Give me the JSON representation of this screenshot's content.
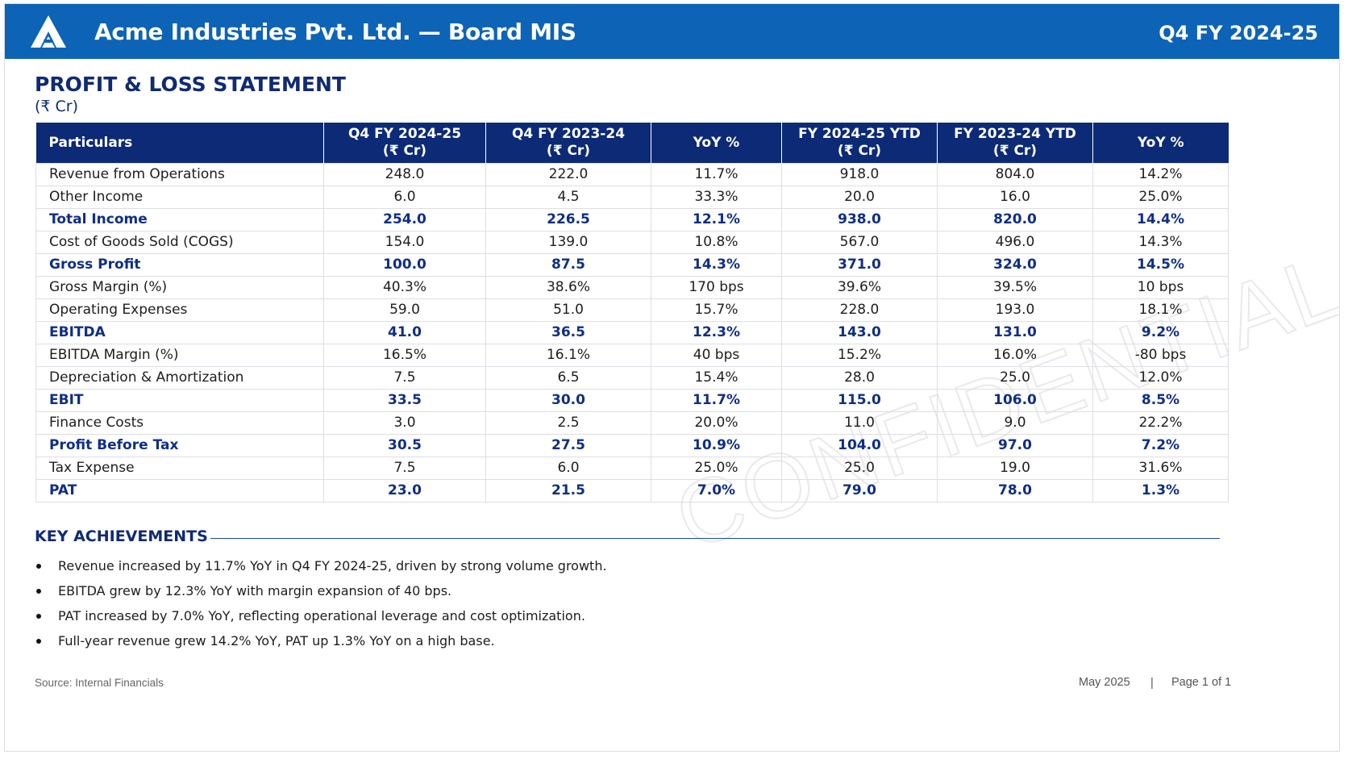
{
  "header": {
    "title": "Acme Industries Pvt. Ltd. — Board MIS",
    "period": "Q4 FY 2024-25",
    "logo_icon": "acme-triangle-logo",
    "bg_color": "#0d63b5"
  },
  "statement": {
    "title": "PROFIT & LOSS STATEMENT",
    "unit": "(₹ Cr)",
    "columns": [
      {
        "l1": "Particulars",
        "l2": ""
      },
      {
        "l1": "Q4 FY 2024-25",
        "l2": "(₹ Cr)"
      },
      {
        "l1": "Q4 FY 2023-24",
        "l2": "(₹ Cr)"
      },
      {
        "l1": "YoY %",
        "l2": ""
      },
      {
        "l1": "FY 2024-25 YTD",
        "l2": "(₹ Cr)"
      },
      {
        "l1": "FY 2023-24 YTD",
        "l2": "(₹ Cr)"
      },
      {
        "l1": "YoY %",
        "l2": ""
      }
    ],
    "rows": [
      {
        "label": "Revenue from Operations",
        "q4_25": "248.0",
        "q4_24": "222.0",
        "yoy_q": "11.7%",
        "fy25": "918.0",
        "fy24": "804.0",
        "yoy_fy": "14.2%",
        "bold": false
      },
      {
        "label": "Other Income",
        "q4_25": "6.0",
        "q4_24": "4.5",
        "yoy_q": "33.3%",
        "fy25": "20.0",
        "fy24": "16.0",
        "yoy_fy": "25.0%",
        "bold": false
      },
      {
        "label": "Total Income",
        "q4_25": "254.0",
        "q4_24": "226.5",
        "yoy_q": "12.1%",
        "fy25": "938.0",
        "fy24": "820.0",
        "yoy_fy": "14.4%",
        "bold": true
      },
      {
        "label": "Cost of Goods Sold (COGS)",
        "q4_25": "154.0",
        "q4_24": "139.0",
        "yoy_q": "10.8%",
        "fy25": "567.0",
        "fy24": "496.0",
        "yoy_fy": "14.3%",
        "bold": false
      },
      {
        "label": "Gross Profit",
        "q4_25": "100.0",
        "q4_24": "87.5",
        "yoy_q": "14.3%",
        "fy25": "371.0",
        "fy24": "324.0",
        "yoy_fy": "14.5%",
        "bold": true
      },
      {
        "label": "Gross Margin (%)",
        "q4_25": "40.3%",
        "q4_24": "38.6%",
        "yoy_q": "170 bps",
        "fy25": "39.6%",
        "fy24": "39.5%",
        "yoy_fy": "10 bps",
        "bold": false
      },
      {
        "label": "Operating Expenses",
        "q4_25": "59.0",
        "q4_24": "51.0",
        "yoy_q": "15.7%",
        "fy25": "228.0",
        "fy24": "193.0",
        "yoy_fy": "18.1%",
        "bold": false
      },
      {
        "label": "EBITDA",
        "q4_25": "41.0",
        "q4_24": "36.5",
        "yoy_q": "12.3%",
        "fy25": "143.0",
        "fy24": "131.0",
        "yoy_fy": "9.2%",
        "bold": true
      },
      {
        "label": "EBITDA Margin (%)",
        "q4_25": "16.5%",
        "q4_24": "16.1%",
        "yoy_q": "40 bps",
        "fy25": "15.2%",
        "fy24": "16.0%",
        "yoy_fy": "-80 bps",
        "bold": false
      },
      {
        "label": "Depreciation & Amortization",
        "q4_25": "7.5",
        "q4_24": "6.5",
        "yoy_q": "15.4%",
        "fy25": "28.0",
        "fy24": "25.0",
        "yoy_fy": "12.0%",
        "bold": false
      },
      {
        "label": "EBIT",
        "q4_25": "33.5",
        "q4_24": "30.0",
        "yoy_q": "11.7%",
        "fy25": "115.0",
        "fy24": "106.0",
        "yoy_fy": "8.5%",
        "bold": true
      },
      {
        "label": "Finance Costs",
        "q4_25": "3.0",
        "q4_24": "2.5",
        "yoy_q": "20.0%",
        "fy25": "11.0",
        "fy24": "9.0",
        "yoy_fy": "22.2%",
        "bold": false
      },
      {
        "label": "Profit Before Tax",
        "q4_25": "30.5",
        "q4_24": "27.5",
        "yoy_q": "10.9%",
        "fy25": "104.0",
        "fy24": "97.0",
        "yoy_fy": "7.2%",
        "bold": true
      },
      {
        "label": "Tax Expense",
        "q4_25": "7.5",
        "q4_24": "6.0",
        "yoy_q": "25.0%",
        "fy25": "25.0",
        "fy24": "19.0",
        "yoy_fy": "31.6%",
        "bold": false
      },
      {
        "label": "PAT",
        "q4_25": "23.0",
        "q4_24": "21.5",
        "yoy_q": "7.0%",
        "fy25": "79.0",
        "fy24": "78.0",
        "yoy_fy": "1.3%",
        "bold": true
      }
    ]
  },
  "achievements": {
    "title": "KEY ACHIEVEMENTS",
    "items": [
      "Revenue increased by 11.7% YoY in Q4 FY 2024-25, driven by strong volume growth.",
      "EBITDA grew by 12.3% YoY with margin expansion of 40 bps.",
      "PAT increased by 7.0% YoY, reflecting operational leverage and cost optimization.",
      "Full-year revenue grew 14.2% YoY, PAT up 1.3% YoY on a high base."
    ]
  },
  "watermark": {
    "text": "CONFIDENTIAL"
  },
  "footer": {
    "source": "Source: Internal Financials",
    "date": "May 2025",
    "separator": "|",
    "page": "Page 1 of 1"
  },
  "colors": {
    "header_blue": "#0d63b5",
    "navy": "#0c2a76",
    "bold_text": "#0f2e86"
  }
}
